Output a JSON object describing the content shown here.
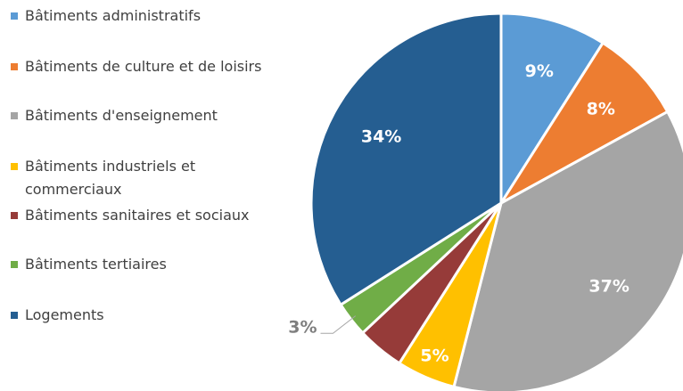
{
  "chart_data": {
    "type": "pie",
    "categories": [
      "Bâtiments administratifs",
      "Bâtiments de culture et de loisirs",
      "Bâtiments d'enseignement",
      "Bâtiments industriels et commerciaux",
      "Bâtiments sanitaires et sociaux",
      "Bâtiments tertiaires",
      "Logements"
    ],
    "values": [
      9,
      8,
      37,
      5,
      4,
      3,
      34
    ],
    "value_labels": [
      "9%",
      "8%",
      "37%",
      "5%",
      null,
      "3%",
      "34%"
    ],
    "colors": [
      "#5b9bd5",
      "#ed7d31",
      "#a5a5a5",
      "#ffc000",
      "#963b39",
      "#70ad47",
      "#255e91"
    ],
    "legend": "left"
  }
}
